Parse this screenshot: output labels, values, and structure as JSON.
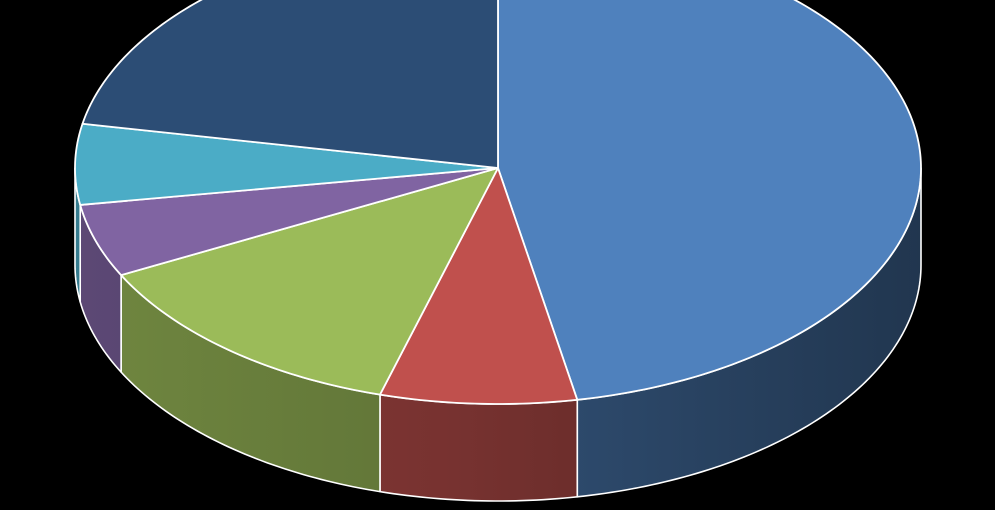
{
  "chart_data": {
    "type": "pie",
    "style": "3d",
    "title": "",
    "legend": "none",
    "data_labels": false,
    "start": "12 o'clock",
    "direction": "clockwise",
    "slices": [
      {
        "value": 47.0,
        "color": "#4F81BD"
      },
      {
        "value": 7.5,
        "color": "#C0504D"
      },
      {
        "value": 13.0,
        "color": "#9BBB59"
      },
      {
        "value": 5.0,
        "color": "#8064A2"
      },
      {
        "value": 5.5,
        "color": "#4BACC6"
      },
      {
        "value": 22.0,
        "color": "#2C4D75"
      }
    ]
  }
}
